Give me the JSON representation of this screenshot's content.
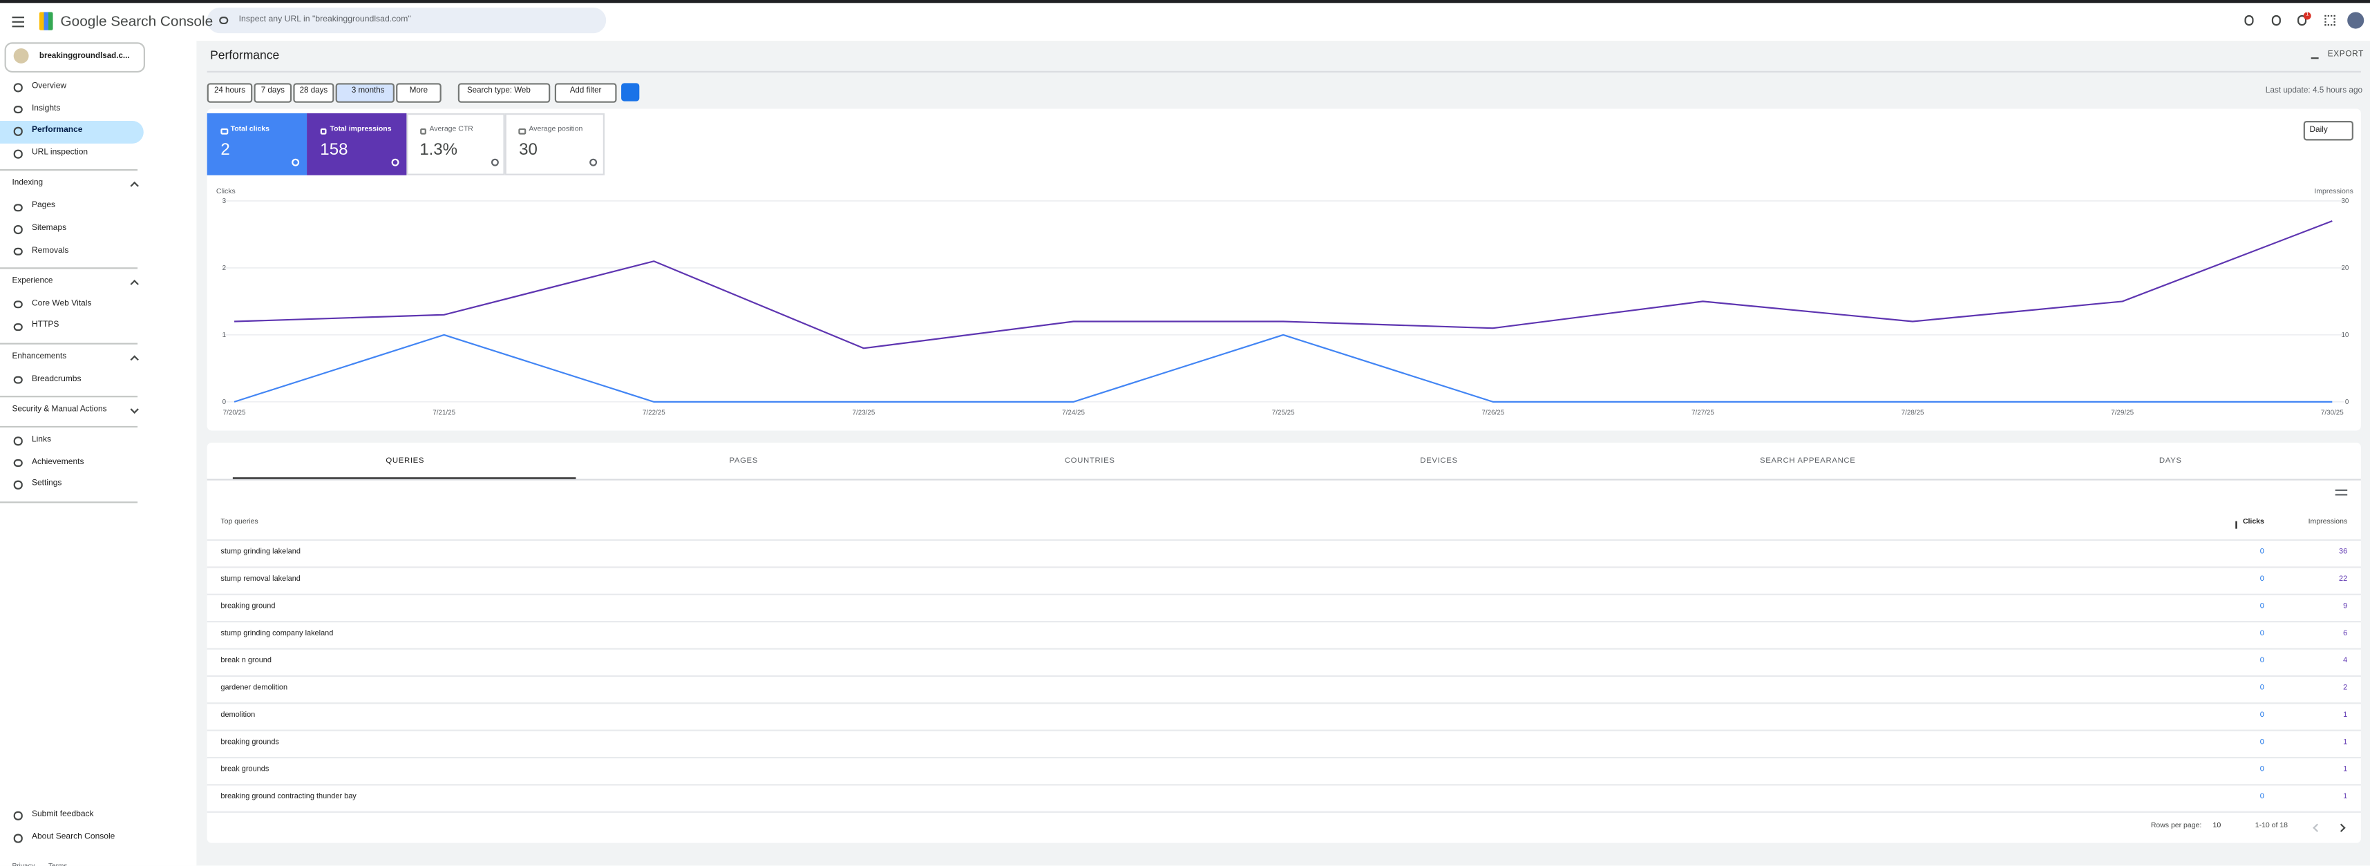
{
  "header": {
    "product": "Google Search Console",
    "search_placeholder": "Inspect any URL in \"breakinggroundlsad.com\"",
    "notification_count": "1"
  },
  "property": "breakinggroundlsad.c...",
  "nav": {
    "items": [
      "Overview",
      "Insights",
      "Performance",
      "URL inspection"
    ],
    "sections": [
      {
        "title": "Indexing",
        "items": [
          "Pages",
          "Sitemaps",
          "Removals"
        ]
      },
      {
        "title": "Experience",
        "items": [
          "Core Web Vitals",
          "HTTPS"
        ]
      },
      {
        "title": "Enhancements",
        "items": [
          "Breadcrumbs"
        ]
      },
      {
        "title": "Security & Manual Actions"
      }
    ],
    "more": [
      "Links",
      "Achievements",
      "Settings"
    ],
    "footer": [
      "Submit feedback",
      "About Search Console"
    ],
    "legal": [
      "Privacy",
      "Terms"
    ]
  },
  "title": "Performance",
  "export": "EXPORT",
  "date_ranges": [
    "24 hours",
    "7 days",
    "28 days",
    "3 months",
    "More"
  ],
  "search_type": "Search type: Web",
  "add_filter": "Add filter",
  "last_update": "Last update: 4.5 hours ago",
  "metrics": [
    {
      "label": "Total clicks",
      "value": 2
    },
    {
      "label": "Total impressions",
      "value": 158
    },
    {
      "label": "Average CTR",
      "value": "1.3%"
    },
    {
      "label": "Average position",
      "value": 30
    }
  ],
  "granularity": "Daily",
  "chart": {
    "type": "line",
    "x": [
      "7/20/25",
      "7/21/25",
      "7/22/25",
      "7/23/25",
      "7/24/25",
      "7/25/25",
      "7/26/25",
      "7/27/25",
      "7/28/25",
      "7/29/25",
      "7/30/25"
    ],
    "series": [
      {
        "name": "Clicks",
        "color": "#4285f4",
        "values": [
          0,
          1,
          0,
          0,
          0,
          1,
          0,
          0,
          0,
          0,
          0
        ]
      },
      {
        "name": "Impressions",
        "color": "#5e35b1",
        "axis": "y2",
        "values": [
          12,
          13,
          21,
          8,
          12,
          12,
          11,
          15,
          12,
          15,
          27
        ]
      }
    ],
    "ylim": [
      0,
      3
    ],
    "yticks": [
      0,
      1,
      2,
      3
    ],
    "y2lim": [
      0,
      30
    ],
    "y2ticks": [
      0,
      10,
      20,
      30
    ],
    "grid": true
  },
  "tabs": [
    "QUERIES",
    "PAGES",
    "COUNTRIES",
    "DEVICES",
    "SEARCH APPEARANCE",
    "DAYS"
  ],
  "table": {
    "columns": [
      "Top queries",
      "Clicks",
      "Impressions"
    ],
    "rows": [
      [
        "stump grinding lakeland",
        0,
        36
      ],
      [
        "stump removal lakeland",
        0,
        22
      ],
      [
        "breaking ground",
        0,
        9
      ],
      [
        "stump grinding company lakeland",
        0,
        6
      ],
      [
        "break n ground",
        0,
        4
      ],
      [
        "gardener demolition",
        0,
        2
      ],
      [
        "demolition",
        0,
        1
      ],
      [
        "breaking grounds",
        0,
        1
      ],
      [
        "break grounds",
        0,
        1
      ],
      [
        "breaking ground contracting thunder bay",
        0,
        1
      ]
    ]
  },
  "pagination": {
    "label": "Rows per page:",
    "per_page": 10,
    "range": "1-10 of 18"
  }
}
